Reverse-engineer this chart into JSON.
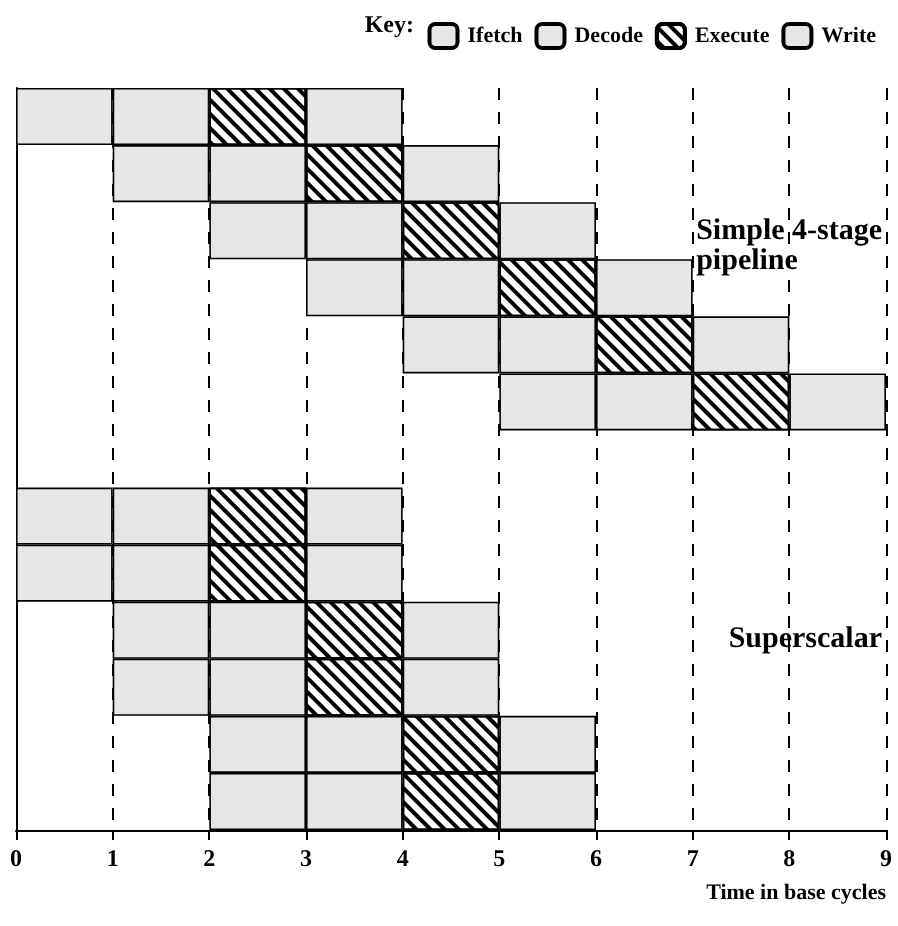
{
  "chart_data": {
    "type": "bar",
    "orientation": "horizontal",
    "categories": [
      null,
      null,
      null,
      null,
      null,
      null,
      null,
      null,
      null,
      null,
      null,
      null,
      null
    ],
    "series": [
      {
        "name": "Ifetch",
        "color": "#e6e6e6",
        "base": [
          0,
          1,
          2,
          3,
          4,
          5,
          null,
          0,
          0,
          1,
          1,
          2,
          2
        ],
        "values": [
          1,
          1,
          1,
          1,
          1,
          1,
          null,
          1,
          1,
          1,
          1,
          1,
          1
        ]
      },
      {
        "name": "Decode",
        "color": "#e6e6e6",
        "base": [
          1,
          2,
          3,
          4,
          5,
          6,
          null,
          1,
          1,
          2,
          2,
          3,
          3
        ],
        "values": [
          1,
          1,
          1,
          1,
          1,
          1,
          null,
          1,
          1,
          1,
          1,
          1,
          1
        ]
      },
      {
        "name": "Execute",
        "color": "#000000",
        "base": [
          2,
          3,
          4,
          5,
          6,
          7,
          null,
          2,
          2,
          3,
          3,
          4,
          4
        ],
        "values": [
          1,
          1,
          1,
          1,
          1,
          1,
          null,
          1,
          1,
          1,
          1,
          1,
          1
        ]
      },
      {
        "name": "Write",
        "color": "#e6e6e6",
        "base": [
          3,
          4,
          5,
          6,
          7,
          8,
          null,
          3,
          3,
          4,
          4,
          5,
          5
        ],
        "values": [
          1,
          1,
          1,
          1,
          1,
          1,
          null,
          1,
          1,
          1,
          1,
          1,
          1
        ]
      }
    ],
    "xlim": [
      0,
      9
    ],
    "xticks": [
      0,
      1,
      2,
      3,
      4,
      5,
      6,
      7,
      8,
      9
    ],
    "xlabel": "Time in base cycles",
    "legend_title": "Key:",
    "legend": "top right",
    "grid": "x",
    "tick_labels": "x",
    "annotations": [
      "Simple 4-stage pipeline",
      "Superscalar"
    ]
  }
}
